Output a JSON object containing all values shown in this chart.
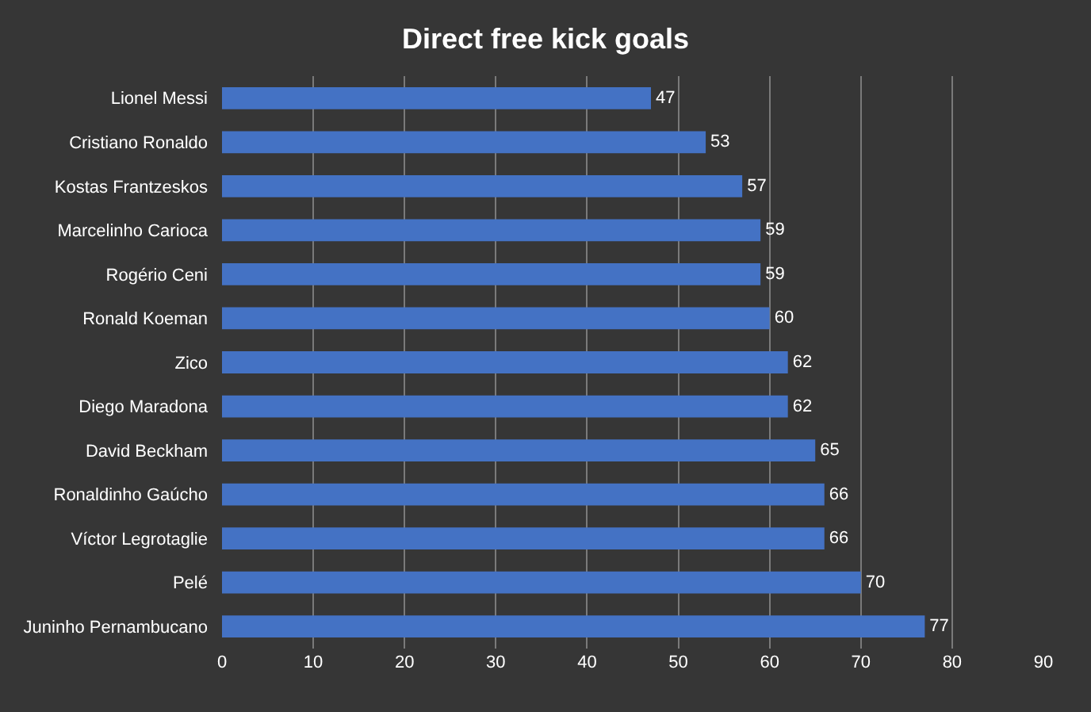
{
  "chart_data": {
    "type": "bar",
    "orientation": "horizontal",
    "title": "Direct free kick goals",
    "categories": [
      "Lionel Messi",
      "Cristiano Ronaldo",
      "Kostas Frantzeskos",
      "Marcelinho Carioca",
      "Rogério Ceni",
      "Ronald Koeman",
      "Zico",
      "Diego Maradona",
      "David Beckham",
      "Ronaldinho Gaúcho",
      "Víctor Legrotaglie",
      "Pelé",
      "Juninho Pernambucano"
    ],
    "values": [
      47,
      53,
      57,
      59,
      59,
      60,
      62,
      62,
      65,
      66,
      66,
      70,
      77
    ],
    "color": "#4472c4",
    "xlim": [
      0,
      90
    ],
    "xticks": [
      0,
      10,
      20,
      30,
      40,
      50,
      60,
      70,
      80,
      90
    ],
    "grid": "x",
    "data_labels": true
  }
}
